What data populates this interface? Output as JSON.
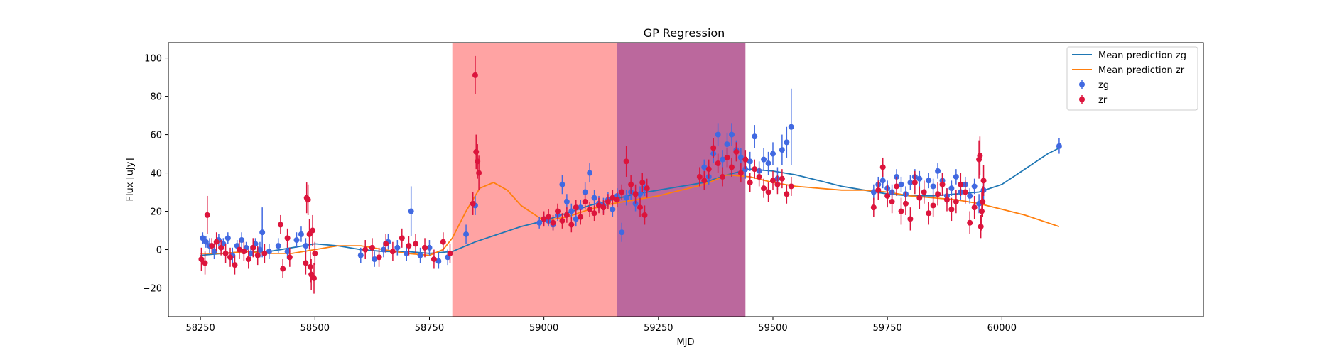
{
  "chart_data": {
    "type": "scatter",
    "title": "GP Regression",
    "xlabel": "MJD",
    "ylabel": "Flux [uJy]",
    "xlim": [
      58180,
      60440
    ],
    "ylim": [
      -35,
      108
    ],
    "xticks": [
      58250,
      58500,
      58750,
      59000,
      59250,
      59500,
      59750,
      60000
    ],
    "yticks": [
      -20,
      0,
      20,
      40,
      60,
      80,
      100
    ],
    "grid": false,
    "legend_position": "top-right",
    "shaded_regions": [
      {
        "x0": 58800,
        "x1": 59160,
        "color": "#ff6666",
        "opacity": 0.6
      },
      {
        "x0": 59160,
        "x1": 59440,
        "color": "#a4367c",
        "opacity": 0.75
      }
    ],
    "series": [
      {
        "name": "Mean prediction zg",
        "kind": "line",
        "color": "#1f77b4",
        "x": [
          58250,
          58300,
          58350,
          58400,
          58450,
          58500,
          58550,
          58600,
          58650,
          58700,
          58750,
          58800,
          58850,
          58900,
          58950,
          59000,
          59050,
          59100,
          59150,
          59200,
          59250,
          59300,
          59350,
          59400,
          59450,
          59500,
          59550,
          59600,
          59650,
          59700,
          59750,
          59800,
          59850,
          59900,
          59950,
          60000,
          60050,
          60100,
          60125
        ],
        "y": [
          -3,
          -2,
          -1,
          -1,
          1,
          3,
          2,
          0,
          -1,
          -1,
          -2,
          -1,
          4,
          8,
          12,
          15,
          19,
          23,
          26,
          29,
          31,
          33,
          35,
          39,
          42,
          41,
          39,
          36,
          33,
          31,
          29,
          28,
          28,
          29,
          30,
          34,
          42,
          50,
          53
        ]
      },
      {
        "name": "Mean prediction zr",
        "kind": "line",
        "color": "#ff7f0e",
        "x": [
          58250,
          58300,
          58350,
          58400,
          58450,
          58500,
          58550,
          58600,
          58650,
          58700,
          58750,
          58780,
          58800,
          58830,
          58860,
          58890,
          58920,
          58950,
          59000,
          59050,
          59100,
          59150,
          59200,
          59250,
          59300,
          59350,
          59400,
          59450,
          59500,
          59550,
          59600,
          59650,
          59700,
          59750,
          59800,
          59850,
          59900,
          59950,
          60000,
          60050,
          60100,
          60125
        ],
        "y": [
          -2,
          -2,
          -1,
          -2,
          -2,
          0,
          2,
          2,
          0,
          -2,
          -3,
          0,
          6,
          20,
          32,
          35,
          31,
          23,
          15,
          17,
          21,
          24,
          26,
          28,
          31,
          34,
          39,
          38,
          35,
          33,
          32,
          31,
          31,
          30,
          28,
          27,
          26,
          24,
          21,
          18,
          14,
          12
        ]
      },
      {
        "name": "zg",
        "kind": "errorbar",
        "color": "#4169e1",
        "x": [
          58255,
          58262,
          58270,
          58280,
          58290,
          58300,
          58310,
          58320,
          58330,
          58340,
          58350,
          58360,
          58370,
          58380,
          58385,
          58400,
          58420,
          58440,
          58460,
          58470,
          58480,
          58600,
          58630,
          58650,
          58660,
          58680,
          58700,
          58710,
          58730,
          58750,
          58770,
          58790,
          58830,
          58850,
          58990,
          59000,
          59010,
          59020,
          59030,
          59040,
          59050,
          59060,
          59070,
          59080,
          59090,
          59100,
          59110,
          59120,
          59130,
          59140,
          59150,
          59160,
          59170,
          59180,
          59190,
          59200,
          59210,
          59220,
          59350,
          59360,
          59370,
          59380,
          59390,
          59400,
          59410,
          59420,
          59430,
          59440,
          59450,
          59460,
          59470,
          59480,
          59490,
          59500,
          59510,
          59520,
          59530,
          59540,
          59720,
          59730,
          59740,
          59750,
          59760,
          59770,
          59780,
          59790,
          59800,
          59810,
          59820,
          59830,
          59840,
          59850,
          59860,
          59870,
          59880,
          59890,
          59900,
          59910,
          59920,
          59930,
          59940,
          59950,
          59960,
          60125
        ],
        "y": [
          6,
          4,
          2,
          -1,
          5,
          3,
          6,
          -3,
          2,
          5,
          1,
          -2,
          3,
          0,
          9,
          -1,
          2,
          -1,
          5,
          8,
          2,
          -3,
          -5,
          0,
          4,
          1,
          -2,
          20,
          -3,
          1,
          -6,
          -4,
          8,
          23,
          14,
          16,
          15,
          13,
          18,
          34,
          25,
          20,
          16,
          22,
          30,
          40,
          27,
          24,
          23,
          26,
          21,
          28,
          9,
          27,
          30,
          24,
          29,
          32,
          43,
          38,
          50,
          60,
          47,
          55,
          60,
          52,
          48,
          42,
          46,
          59,
          41,
          47,
          45,
          50,
          37,
          52,
          56,
          64,
          30,
          34,
          36,
          32,
          30,
          38,
          34,
          29,
          35,
          38,
          37,
          30,
          36,
          33,
          41,
          36,
          28,
          32,
          38,
          30,
          34,
          28,
          33,
          24,
          31,
          54
        ],
        "err": [
          3,
          3,
          4,
          4,
          3,
          3,
          3,
          4,
          3,
          4,
          3,
          4,
          3,
          4,
          13,
          4,
          4,
          4,
          4,
          4,
          4,
          4,
          4,
          4,
          4,
          4,
          4,
          13,
          4,
          4,
          4,
          4,
          5,
          5,
          3,
          3,
          3,
          3,
          3,
          5,
          4,
          4,
          4,
          4,
          5,
          5,
          4,
          4,
          4,
          4,
          4,
          4,
          5,
          4,
          4,
          4,
          4,
          4,
          4,
          4,
          5,
          6,
          5,
          6,
          6,
          5,
          5,
          5,
          5,
          6,
          5,
          6,
          6,
          6,
          6,
          8,
          8,
          20,
          4,
          4,
          4,
          4,
          4,
          4,
          4,
          4,
          4,
          4,
          4,
          4,
          4,
          4,
          4,
          4,
          4,
          4,
          4,
          4,
          4,
          4,
          4,
          5,
          5,
          4
        ]
      },
      {
        "name": "zr",
        "kind": "errorbar",
        "color": "#dc143c",
        "x": [
          58252,
          58260,
          58265,
          58275,
          58285,
          58295,
          58305,
          58315,
          58325,
          58335,
          58345,
          58355,
          58365,
          58375,
          58390,
          58425,
          58430,
          58440,
          58445,
          58480,
          58482,
          58485,
          58488,
          58490,
          58492,
          58495,
          58498,
          58500,
          58610,
          58625,
          58640,
          58655,
          58670,
          58690,
          58705,
          58720,
          58740,
          58760,
          58780,
          58795,
          58845,
          58850,
          58852,
          58855,
          58858,
          59000,
          59010,
          59020,
          59030,
          59040,
          59050,
          59060,
          59070,
          59080,
          59090,
          59100,
          59110,
          59120,
          59130,
          59140,
          59150,
          59160,
          59170,
          59180,
          59190,
          59200,
          59210,
          59215,
          59220,
          59225,
          59340,
          59350,
          59360,
          59370,
          59380,
          59390,
          59400,
          59410,
          59420,
          59430,
          59440,
          59450,
          59460,
          59470,
          59480,
          59490,
          59500,
          59510,
          59520,
          59530,
          59540,
          59720,
          59730,
          59740,
          59750,
          59760,
          59770,
          59780,
          59790,
          59800,
          59810,
          59820,
          59830,
          59840,
          59850,
          59860,
          59870,
          59880,
          59890,
          59900,
          59910,
          59920,
          59930,
          59940,
          59950,
          59952,
          59954,
          59956,
          59958,
          59960
        ],
        "y": [
          -5,
          -7,
          18,
          2,
          4,
          1,
          -2,
          -4,
          -8,
          0,
          -1,
          -5,
          1,
          -3,
          -2,
          13,
          -10,
          6,
          -4,
          -7,
          27,
          26,
          8,
          -9,
          -13,
          10,
          -15,
          -2,
          0,
          1,
          -4,
          3,
          -1,
          6,
          2,
          3,
          1,
          -5,
          4,
          -2,
          24,
          91,
          51,
          46,
          40,
          16,
          17,
          14,
          20,
          15,
          18,
          13,
          22,
          17,
          25,
          21,
          19,
          23,
          22,
          25,
          27,
          26,
          30,
          46,
          34,
          29,
          22,
          35,
          18,
          32,
          38,
          36,
          42,
          53,
          45,
          38,
          48,
          43,
          51,
          40,
          47,
          35,
          42,
          38,
          32,
          30,
          36,
          34,
          37,
          29,
          33,
          22,
          31,
          43,
          28,
          25,
          33,
          20,
          24,
          16,
          35,
          27,
          30,
          19,
          23,
          29,
          34,
          26,
          21,
          25,
          34,
          30,
          14,
          22,
          47,
          49,
          12,
          20,
          25,
          36
        ],
        "err": [
          6,
          6,
          10,
          4,
          5,
          4,
          5,
          5,
          5,
          5,
          5,
          5,
          5,
          5,
          5,
          5,
          5,
          5,
          5,
          6,
          8,
          8,
          8,
          8,
          8,
          8,
          8,
          6,
          5,
          5,
          5,
          5,
          5,
          5,
          5,
          5,
          5,
          5,
          5,
          5,
          6,
          10,
          9,
          9,
          9,
          4,
          4,
          4,
          4,
          4,
          4,
          4,
          4,
          4,
          4,
          4,
          4,
          4,
          4,
          4,
          4,
          4,
          4,
          8,
          5,
          5,
          5,
          5,
          5,
          5,
          5,
          5,
          5,
          5,
          5,
          5,
          5,
          5,
          5,
          5,
          5,
          5,
          5,
          5,
          5,
          5,
          5,
          5,
          5,
          5,
          5,
          5,
          5,
          5,
          6,
          6,
          5,
          7,
          6,
          6,
          6,
          6,
          6,
          6,
          6,
          6,
          6,
          6,
          6,
          6,
          6,
          6,
          6,
          6,
          10,
          10,
          6,
          10,
          8,
          8
        ]
      }
    ],
    "legend": [
      {
        "label": "Mean prediction zg",
        "kind": "line",
        "color": "#1f77b4"
      },
      {
        "label": "Mean prediction zr",
        "kind": "line",
        "color": "#ff7f0e"
      },
      {
        "label": "zg",
        "kind": "marker",
        "color": "#4169e1"
      },
      {
        "label": "zr",
        "kind": "marker",
        "color": "#dc143c"
      }
    ]
  }
}
